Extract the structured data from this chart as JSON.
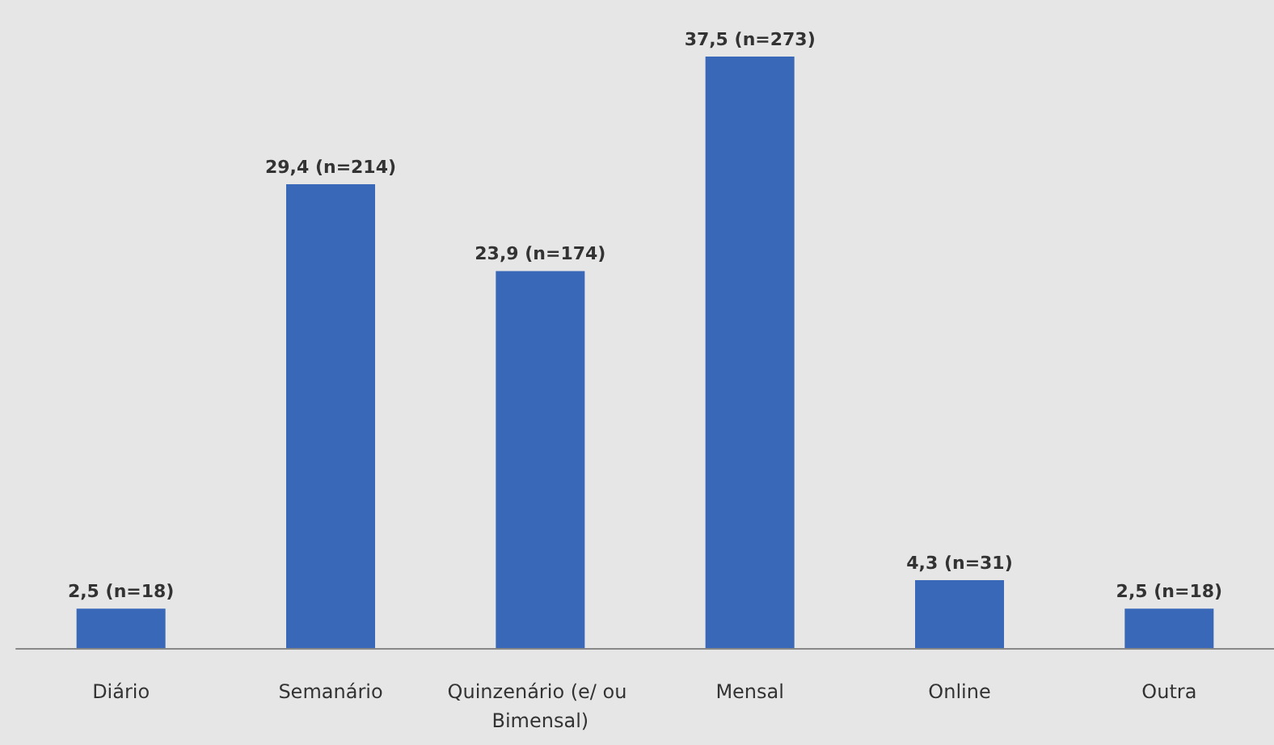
{
  "chart_data": {
    "type": "bar",
    "categories": [
      "Diário",
      "Semanário",
      "Quinzenário (e/ ou Bimensal)",
      "Mensal",
      "Online",
      "Outra"
    ],
    "values": [
      2.5,
      29.4,
      23.9,
      37.5,
      4.3,
      2.5
    ],
    "value_labels": [
      "2,5 (n=18)",
      "29,4 (n=214)",
      "23,9 (n=174)",
      "37,5 (n=273)",
      "4,3 (n=31)",
      "2,5 (n=18)"
    ],
    "color": "#3a68b8"
  }
}
